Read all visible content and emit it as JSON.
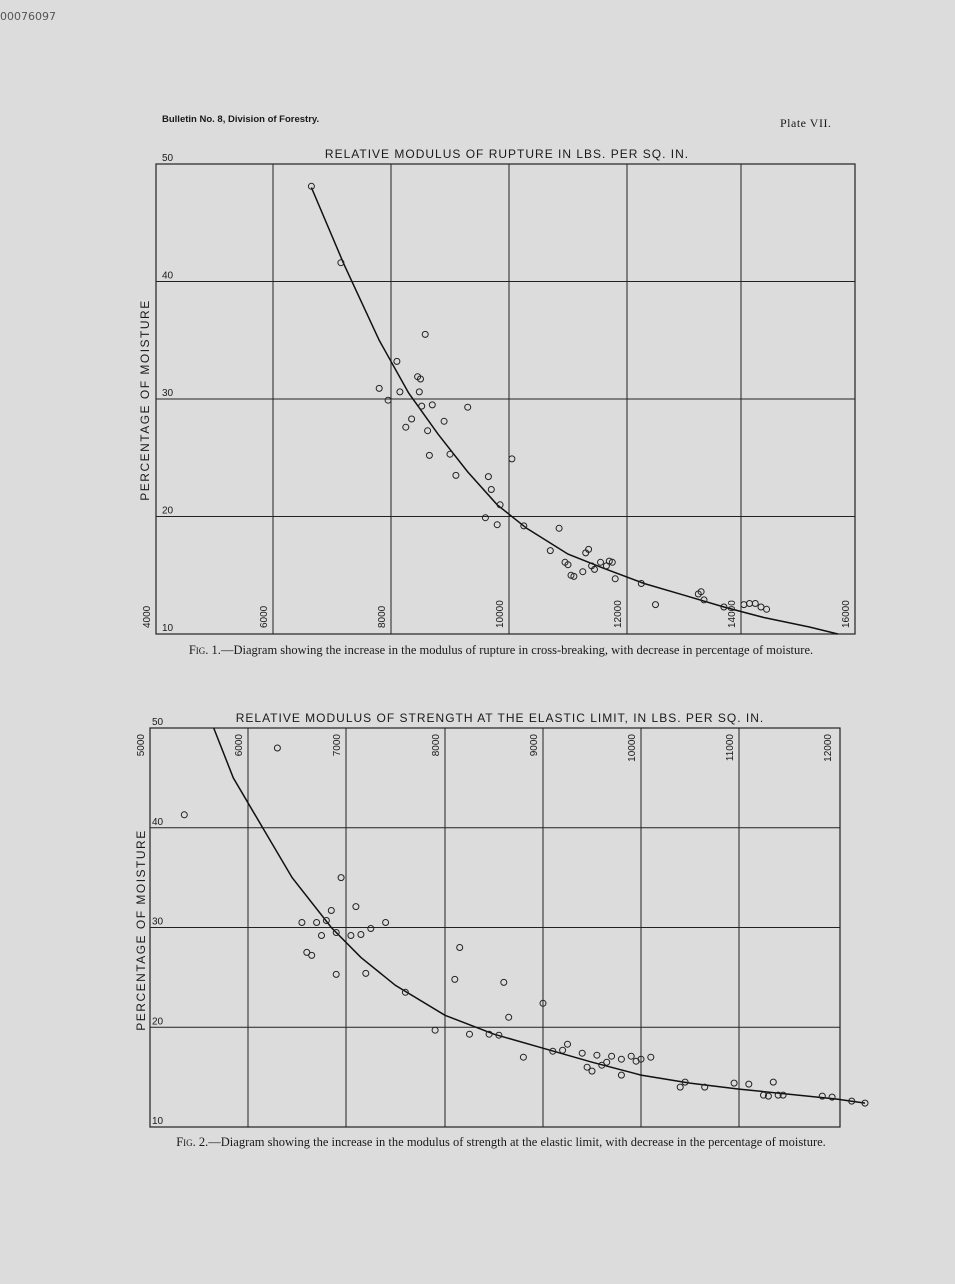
{
  "page": {
    "scan_id": "00076097",
    "header_left": "Bulletin No. 8, Division of Forestry.",
    "header_right": "Plate VII."
  },
  "fig1": {
    "fig_label": "Fig. 1.",
    "caption": "—Diagram showing the increase in the modulus of rupture in cross-breaking, with decrease in percentage of moisture."
  },
  "fig2": {
    "fig_label": "Fig. 2.",
    "caption": "—Diagram showing the increase in the modulus of strength at the elastic limit, with decrease in the percentage of moisture."
  },
  "chart_data": [
    {
      "type": "scatter",
      "title": "RELATIVE MODULUS OF RUPTURE IN LBS. PER SQ. IN.",
      "ylabel": "PERCENTAGE OF MOISTURE",
      "xlabel": "",
      "xlim": [
        4000,
        16000
      ],
      "ylim": [
        10,
        50
      ],
      "x_ticks": [
        "4000",
        "6000",
        "8000",
        "10000",
        "12000",
        "14000",
        "16000"
      ],
      "y_ticks": [
        "10",
        "20",
        "30",
        "40",
        "50"
      ],
      "grid": true,
      "series": [
        {
          "points": [
            [
              6650,
              48.1
            ],
            [
              7150,
              41.6
            ],
            [
              7800,
              30.9
            ],
            [
              7950,
              29.9
            ],
            [
              8100,
              33.2
            ],
            [
              8150,
              30.6
            ],
            [
              8250,
              27.6
            ],
            [
              8350,
              28.3
            ],
            [
              8450,
              31.9
            ],
            [
              8480,
              30.6
            ],
            [
              8520,
              29.4
            ],
            [
              8500,
              31.7
            ],
            [
              8580,
              35.5
            ],
            [
              8620,
              27.3
            ],
            [
              8650,
              25.2
            ],
            [
              8700,
              29.5
            ],
            [
              8900,
              28.1
            ],
            [
              9000,
              25.3
            ],
            [
              9100,
              23.5
            ],
            [
              9300,
              29.3
            ],
            [
              9650,
              23.4
            ],
            [
              9700,
              22.3
            ],
            [
              9850,
              21.0
            ],
            [
              9600,
              19.9
            ],
            [
              9800,
              19.3
            ],
            [
              10050,
              24.9
            ],
            [
              10250,
              19.2
            ],
            [
              10700,
              17.1
            ],
            [
              10850,
              19.0
            ],
            [
              10950,
              16.1
            ],
            [
              11000,
              15.9
            ],
            [
              11050,
              15.0
            ],
            [
              11100,
              14.9
            ],
            [
              11250,
              15.3
            ],
            [
              11300,
              16.9
            ],
            [
              11350,
              17.2
            ],
            [
              11400,
              15.8
            ],
            [
              11450,
              15.5
            ],
            [
              11550,
              16.1
            ],
            [
              11650,
              15.8
            ],
            [
              11700,
              16.2
            ],
            [
              11750,
              16.1
            ],
            [
              11800,
              14.7
            ],
            [
              12250,
              14.3
            ],
            [
              12500,
              12.5
            ],
            [
              13250,
              13.4
            ],
            [
              13300,
              13.6
            ],
            [
              13350,
              12.9
            ],
            [
              13700,
              12.3
            ],
            [
              14050,
              12.5
            ],
            [
              14150,
              12.6
            ],
            [
              14250,
              12.6
            ],
            [
              14350,
              12.3
            ],
            [
              14450,
              12.1
            ]
          ]
        }
      ],
      "fit_curve": [
        [
          6650,
          48.0
        ],
        [
          7200,
          41.5
        ],
        [
          7800,
          35.0
        ],
        [
          8300,
          30.5
        ],
        [
          8800,
          27.0
        ],
        [
          9300,
          23.8
        ],
        [
          9800,
          21.0
        ],
        [
          10300,
          19.0
        ],
        [
          11000,
          16.8
        ],
        [
          11600,
          15.6
        ],
        [
          12300,
          14.3
        ],
        [
          13000,
          13.3
        ],
        [
          13700,
          12.3
        ],
        [
          14400,
          11.4
        ],
        [
          15200,
          10.6
        ],
        [
          15700,
          10.0
        ]
      ]
    },
    {
      "type": "scatter",
      "title": "RELATIVE MODULUS OF STRENGTH AT THE ELASTIC LIMIT, IN LBS. PER SQ. IN.",
      "ylabel": "PERCENTAGE OF MOISTURE",
      "xlabel": "",
      "xlim": [
        5000,
        12000
      ],
      "ylim": [
        10,
        50
      ],
      "x_ticks": [
        "5000",
        "6000",
        "7000",
        "8000",
        "9000",
        "10000",
        "11000",
        "12000"
      ],
      "y_ticks": [
        "10",
        "20",
        "30",
        "40",
        "50"
      ],
      "grid": true,
      "series": [
        {
          "points": [
            [
              5350,
              41.3
            ],
            [
              6300,
              48.0
            ],
            [
              6550,
              30.5
            ],
            [
              6600,
              27.5
            ],
            [
              6650,
              27.2
            ],
            [
              6700,
              30.5
            ],
            [
              6750,
              29.2
            ],
            [
              6800,
              30.7
            ],
            [
              6850,
              31.7
            ],
            [
              6900,
              29.5
            ],
            [
              6900,
              25.3
            ],
            [
              6950,
              35.0
            ],
            [
              7050,
              29.2
            ],
            [
              7100,
              32.1
            ],
            [
              7150,
              29.3
            ],
            [
              7200,
              25.4
            ],
            [
              7250,
              29.9
            ],
            [
              7400,
              30.5
            ],
            [
              7600,
              23.5
            ],
            [
              7900,
              19.7
            ],
            [
              8100,
              24.8
            ],
            [
              8150,
              28.0
            ],
            [
              8250,
              19.3
            ],
            [
              8450,
              19.3
            ],
            [
              8550,
              19.2
            ],
            [
              8600,
              24.5
            ],
            [
              8650,
              21.0
            ],
            [
              8800,
              17.0
            ],
            [
              9000,
              22.4
            ],
            [
              9100,
              17.6
            ],
            [
              9200,
              17.7
            ],
            [
              9250,
              18.3
            ],
            [
              9400,
              17.4
            ],
            [
              9450,
              16.0
            ],
            [
              9500,
              15.6
            ],
            [
              9550,
              17.2
            ],
            [
              9600,
              16.2
            ],
            [
              9650,
              16.5
            ],
            [
              9700,
              17.1
            ],
            [
              9800,
              15.2
            ],
            [
              9800,
              16.8
            ],
            [
              9900,
              17.1
            ],
            [
              9950,
              16.6
            ],
            [
              10000,
              16.8
            ],
            [
              10100,
              17.0
            ],
            [
              10400,
              14.0
            ],
            [
              10450,
              14.5
            ],
            [
              10650,
              14.0
            ],
            [
              10950,
              14.4
            ],
            [
              11100,
              14.3
            ],
            [
              11250,
              13.2
            ],
            [
              11300,
              13.1
            ],
            [
              11350,
              14.5
            ],
            [
              11400,
              13.2
            ],
            [
              11450,
              13.2
            ],
            [
              11850,
              13.1
            ],
            [
              11950,
              13.0
            ],
            [
              12150,
              12.6
            ],
            [
              12300,
              12.4
            ]
          ]
        }
      ],
      "fit_curve": [
        [
          5650,
          50.0
        ],
        [
          5850,
          45.0
        ],
        [
          6150,
          40.0
        ],
        [
          6450,
          35.0
        ],
        [
          6850,
          30.0
        ],
        [
          7150,
          27.0
        ],
        [
          7500,
          24.2
        ],
        [
          8000,
          21.2
        ],
        [
          8500,
          19.3
        ],
        [
          9000,
          17.9
        ],
        [
          9500,
          16.5
        ],
        [
          10000,
          15.2
        ],
        [
          10500,
          14.4
        ],
        [
          11000,
          13.8
        ],
        [
          11500,
          13.3
        ],
        [
          12000,
          12.8
        ],
        [
          12400,
          12.4
        ]
      ]
    }
  ]
}
